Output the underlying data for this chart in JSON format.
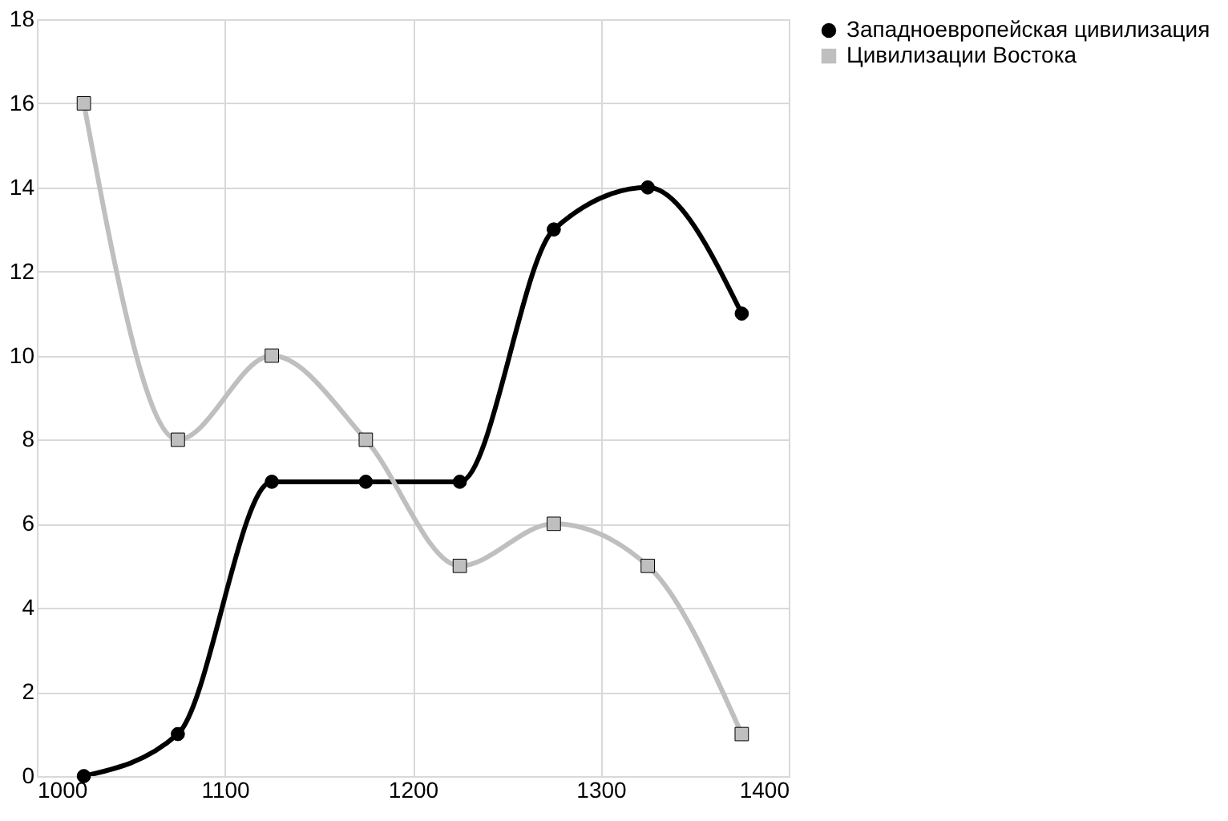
{
  "chart_data": {
    "type": "line",
    "x": [
      1025,
      1075,
      1125,
      1175,
      1225,
      1275,
      1325,
      1375
    ],
    "series": [
      {
        "name": "Западноевропейская цивилизация",
        "color": "#000000",
        "marker": "circle",
        "values": [
          0,
          1,
          7,
          7,
          7,
          13,
          14,
          11
        ]
      },
      {
        "name": "Цивилизации Востока",
        "color": "#bfbfbf",
        "marker": "square",
        "values": [
          16,
          8,
          10,
          8,
          5,
          6,
          5,
          1
        ]
      }
    ],
    "xlim": [
      1000,
      1400
    ],
    "xticks": [
      1000,
      1100,
      1200,
      1300,
      1400
    ],
    "ylim": [
      0,
      18
    ],
    "yticks": [
      0,
      2,
      4,
      6,
      8,
      10,
      12,
      14,
      16,
      18
    ],
    "grid": true,
    "legend": "right",
    "line_style": "solid"
  }
}
